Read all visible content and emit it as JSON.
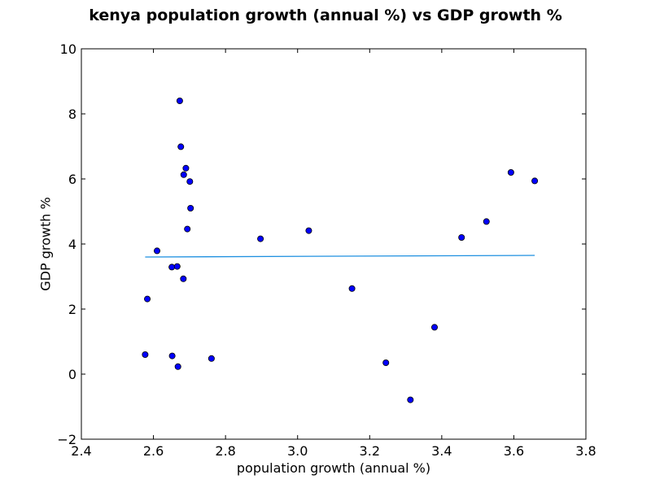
{
  "chart_data": {
    "type": "scatter",
    "title": "kenya population growth (annual %) vs GDP growth %",
    "xlabel": "population growth (annual %)",
    "ylabel": "GDP growth %",
    "xlim": [
      2.4,
      3.8
    ],
    "ylim": [
      -2,
      10
    ],
    "xticks": [
      2.4,
      2.6,
      2.8,
      3.0,
      3.2,
      3.4,
      3.6,
      3.8
    ],
    "xtick_labels": [
      "2.4",
      "2.6",
      "2.8",
      "3.0",
      "3.2",
      "3.4",
      "3.6",
      "3.8"
    ],
    "yticks": [
      -2,
      0,
      2,
      4,
      6,
      8,
      10
    ],
    "ytick_labels": [
      "−2",
      "0",
      "2",
      "4",
      "6",
      "8",
      "10"
    ],
    "grid": false,
    "points": {
      "x": [
        2.577,
        2.583,
        2.61,
        2.651,
        2.652,
        2.666,
        2.668,
        2.673,
        2.676,
        2.683,
        2.684,
        2.69,
        2.694,
        2.701,
        2.703,
        2.761,
        2.897,
        3.031,
        3.151,
        3.245,
        3.313,
        3.38,
        3.455,
        3.524,
        3.592,
        3.658
      ],
      "y": [
        0.6,
        2.31,
        3.79,
        3.29,
        0.56,
        3.31,
        0.23,
        8.4,
        6.99,
        2.93,
        6.13,
        6.33,
        4.46,
        5.92,
        5.1,
        0.48,
        4.16,
        4.41,
        2.63,
        0.35,
        -0.79,
        1.44,
        4.2,
        4.69,
        6.2,
        5.94
      ],
      "color": "#0000ff",
      "edge_color": "#000000"
    },
    "trend_line": {
      "x": [
        2.577,
        3.658
      ],
      "y": [
        3.6,
        3.65
      ],
      "color": "#1e90e0"
    }
  }
}
